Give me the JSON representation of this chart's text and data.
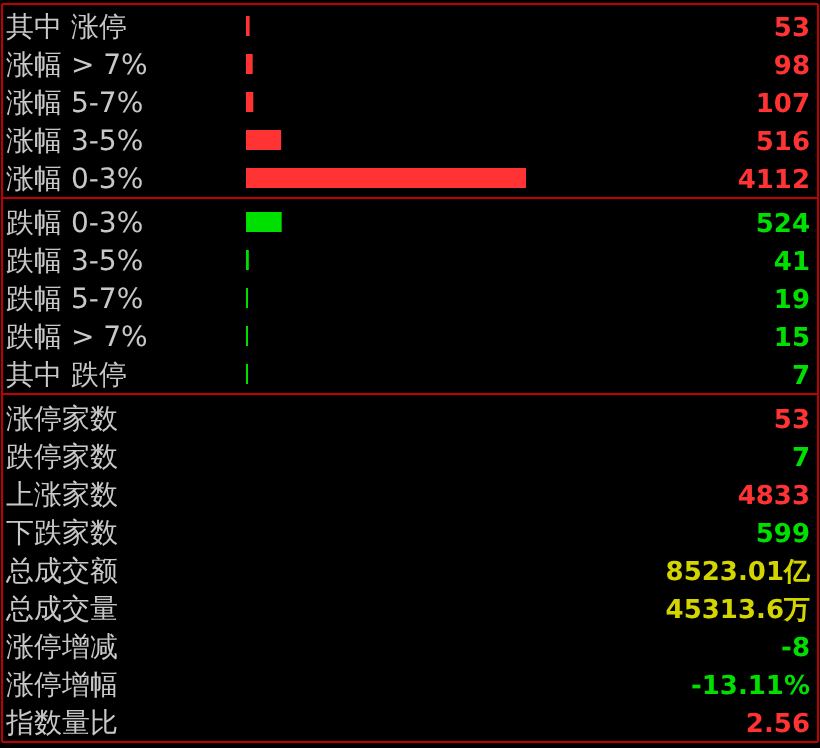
{
  "chart_data": [
    {
      "type": "bar",
      "orientation": "horizontal",
      "categories": [
        "其中 涨停",
        "涨幅 > 7%",
        "涨幅 5-7%",
        "涨幅 3-5%",
        "涨幅 0-3%"
      ],
      "values": [
        53,
        98,
        107,
        516,
        4112
      ],
      "color": "#ff3333",
      "data_labels": true
    },
    {
      "type": "bar",
      "orientation": "horizontal",
      "categories": [
        "跌幅 0-3%",
        "跌幅 3-5%",
        "跌幅 5-7%",
        "跌幅 > 7%",
        "其中 跌停"
      ],
      "values": [
        524,
        41,
        19,
        15,
        7
      ],
      "color": "#00e000",
      "data_labels": true
    },
    {
      "type": "other",
      "categories": [
        "涨停家数",
        "跌停家数",
        "上涨家数",
        "下跌家数",
        "总成交额",
        "总成交量",
        "涨停增减",
        "涨停增幅",
        "指数量比"
      ],
      "value_labels": [
        "53",
        "7",
        "4833",
        "599",
        "8523.01亿",
        "45313.6万",
        "-8",
        "-13.11%",
        "2.56"
      ],
      "colors": [
        "#ff3333",
        "#00e000",
        "#ff3333",
        "#00e000",
        "#d4d400",
        "#d4d400",
        "#00e000",
        "#00e000",
        "#ff3333"
      ]
    }
  ]
}
